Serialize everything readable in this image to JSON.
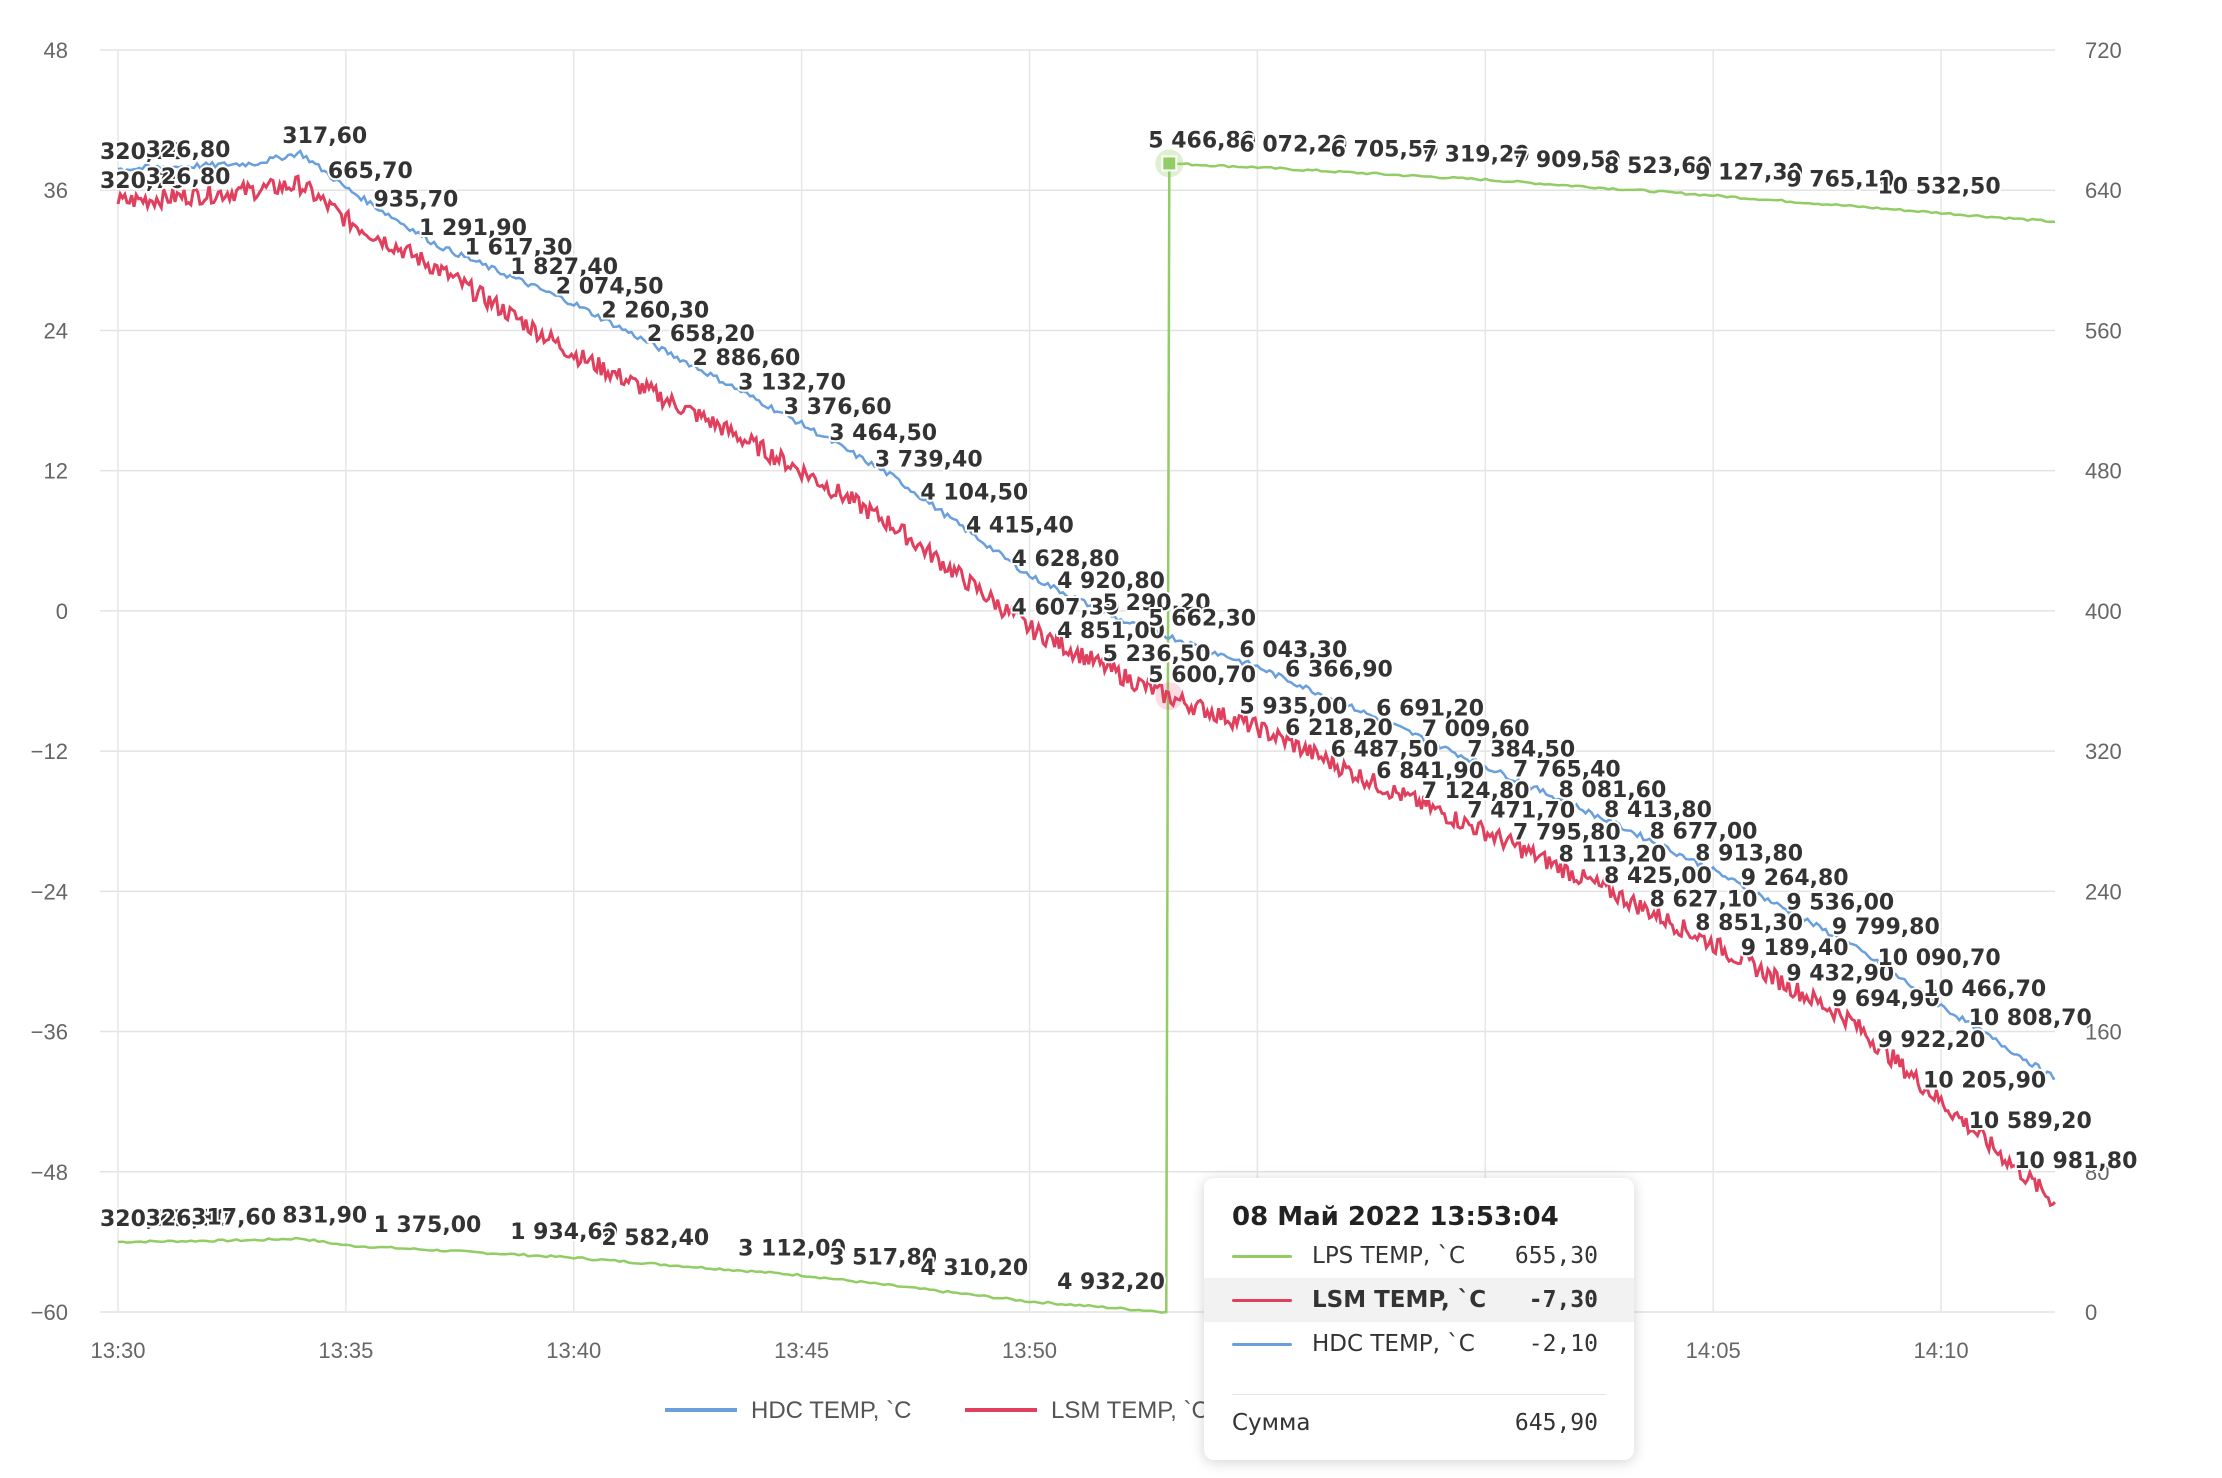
{
  "chart_data": {
    "type": "line",
    "x_ticks": [
      "13:30",
      "13:35",
      "13:40",
      "13:45",
      "13:50",
      "13:55",
      "14:00",
      "14:05",
      "14:10"
    ],
    "x_range": [
      "13:30",
      "14:12:30"
    ],
    "y_left": {
      "ticks": [
        48,
        36,
        24,
        12,
        0,
        -12,
        -24,
        -36,
        -48,
        -60
      ],
      "range": [
        -60,
        48
      ]
    },
    "y_right": {
      "ticks": [
        720,
        640,
        560,
        480,
        400,
        320,
        240,
        160,
        80,
        0
      ],
      "range": [
        0,
        720
      ]
    },
    "grid": true,
    "legend_position": "bottom",
    "series": [
      {
        "name": "HDC TEMP, `C",
        "color": "#6a9fde",
        "axis": "left",
        "points": [
          [
            "13:30",
            37.8
          ],
          [
            "13:33",
            38.3
          ],
          [
            "13:34",
            39.2
          ],
          [
            "13:35",
            36.2
          ],
          [
            "13:37",
            31.3
          ],
          [
            "13:40",
            26.3
          ],
          [
            "13:43",
            20.2
          ],
          [
            "13:45",
            16.0
          ],
          [
            "13:47",
            11.5
          ],
          [
            "13:50",
            3.0
          ],
          [
            "13:52",
            -0.8
          ],
          [
            "13:53",
            -2.1
          ],
          [
            "13:55",
            -4.8
          ],
          [
            "13:58",
            -9.8
          ],
          [
            "14:00",
            -13.3
          ],
          [
            "14:03",
            -18.5
          ],
          [
            "14:05",
            -22.2
          ],
          [
            "14:08",
            -28.5
          ],
          [
            "14:10",
            -33.8
          ],
          [
            "14:12:30",
            -40.0
          ]
        ],
        "labels": [
          [
            "13:30",
            "320,70"
          ],
          [
            "13:31",
            "326,80"
          ],
          [
            "13:34",
            "317,60"
          ],
          [
            "13:35",
            "665,70"
          ],
          [
            "13:36",
            "935,70"
          ],
          [
            "13:37",
            "1 291,90"
          ],
          [
            "13:38",
            "1 617,30"
          ],
          [
            "13:39",
            "1 827,40"
          ],
          [
            "13:40",
            "2 074,50"
          ],
          [
            "13:41",
            "2 260,30"
          ],
          [
            "13:42",
            "2 658,20"
          ],
          [
            "13:43",
            "2 886,60"
          ],
          [
            "13:44",
            "3 132,70"
          ],
          [
            "13:45",
            "3 376,60"
          ],
          [
            "13:46",
            "3 464,50"
          ],
          [
            "13:47",
            "3 739,40"
          ],
          [
            "13:48",
            "4 104,50"
          ],
          [
            "13:49",
            "4 415,40"
          ],
          [
            "13:50",
            "4 628,80"
          ],
          [
            "13:51",
            "4 920,80"
          ],
          [
            "13:52",
            "5 290,20"
          ],
          [
            "13:53",
            "5 662,30"
          ],
          [
            "13:55",
            "6 043,30"
          ],
          [
            "13:56",
            "6 366,90"
          ],
          [
            "13:58",
            "6 691,20"
          ],
          [
            "13:59",
            "7 009,60"
          ],
          [
            "14:00",
            "7 384,50"
          ],
          [
            "14:01",
            "7 765,40"
          ],
          [
            "14:02",
            "8 081,60"
          ],
          [
            "14:03",
            "8 413,80"
          ],
          [
            "14:04",
            "8 677,00"
          ],
          [
            "14:05",
            "8 913,80"
          ],
          [
            "14:06",
            "9 264,80"
          ],
          [
            "14:07",
            "9 536,00"
          ],
          [
            "14:08",
            "9 799,80"
          ],
          [
            "14:09",
            "10 090,70"
          ],
          [
            "14:10",
            "10 466,70"
          ],
          [
            "14:11",
            "10 808,70"
          ]
        ]
      },
      {
        "name": "LSM TEMP, `C",
        "color": "#e0405d",
        "axis": "left",
        "points": [
          [
            "13:30",
            35.0
          ],
          [
            "13:33",
            36.0
          ],
          [
            "13:34",
            36.5
          ],
          [
            "13:35",
            33.5
          ],
          [
            "13:37",
            29.3
          ],
          [
            "13:40",
            22.0
          ],
          [
            "13:43",
            16.2
          ],
          [
            "13:45",
            12.0
          ],
          [
            "13:47",
            7.3
          ],
          [
            "13:50",
            -1.5
          ],
          [
            "13:52",
            -5.5
          ],
          [
            "13:53",
            -7.3
          ],
          [
            "13:55",
            -10.0
          ],
          [
            "13:58",
            -15.5
          ],
          [
            "14:00",
            -18.9
          ],
          [
            "14:03",
            -24.5
          ],
          [
            "14:05",
            -28.5
          ],
          [
            "14:08",
            -35.0
          ],
          [
            "14:10",
            -42.0
          ],
          [
            "14:12:30",
            -50.6
          ]
        ],
        "labels": [
          [
            "13:30",
            "320,70"
          ],
          [
            "13:31",
            "326,80"
          ],
          [
            "13:50",
            "4 607,30"
          ],
          [
            "13:51",
            "4 851,00"
          ],
          [
            "13:52",
            "5 236,50"
          ],
          [
            "13:53",
            "5 600,70"
          ],
          [
            "13:55",
            "5 935,00"
          ],
          [
            "13:56",
            "6 218,20"
          ],
          [
            "13:57",
            "6 487,50"
          ],
          [
            "13:58",
            "6 841,90"
          ],
          [
            "13:59",
            "7 124,80"
          ],
          [
            "14:00",
            "7 471,70"
          ],
          [
            "14:01",
            "7 795,80"
          ],
          [
            "14:02",
            "8 113,20"
          ],
          [
            "14:03",
            "8 425,00"
          ],
          [
            "14:04",
            "8 627,10"
          ],
          [
            "14:05",
            "8 851,30"
          ],
          [
            "14:06",
            "9 189,40"
          ],
          [
            "14:07",
            "9 432,90"
          ],
          [
            "14:08",
            "9 694,90"
          ],
          [
            "14:09",
            "9 922,20"
          ],
          [
            "14:10",
            "10 205,90"
          ],
          [
            "14:11",
            "10 589,20"
          ],
          [
            "14:12",
            "10 981,80"
          ]
        ]
      },
      {
        "name": "LPS TEMP, `C",
        "color": "#92cc64",
        "axis": "right",
        "points": [
          [
            "13:30",
            40
          ],
          [
            "13:33",
            41
          ],
          [
            "13:34",
            42
          ],
          [
            "13:35",
            38
          ],
          [
            "13:40",
            31
          ],
          [
            "13:45",
            21
          ],
          [
            "13:50",
            6
          ],
          [
            "13:53",
            0
          ],
          [
            "13:53:04",
            655.3
          ],
          [
            "13:55",
            653
          ],
          [
            "14:00",
            646
          ],
          [
            "14:05",
            637
          ],
          [
            "14:10",
            627
          ],
          [
            "14:12:30",
            622
          ]
        ],
        "labels": [
          [
            "13:30",
            "320,70"
          ],
          [
            "13:31",
            "326,80"
          ],
          [
            "13:32",
            "317,60"
          ],
          [
            "13:34",
            "831,90"
          ],
          [
            "13:36",
            "1 375,00"
          ],
          [
            "13:39",
            "1 934,60"
          ],
          [
            "13:41",
            "2 582,40"
          ],
          [
            "13:44",
            "3 112,00"
          ],
          [
            "13:46",
            "3 517,80"
          ],
          [
            "13:48",
            "4 310,20"
          ],
          [
            "13:51",
            "4 932,20"
          ],
          [
            "13:53",
            "5 466,80"
          ],
          [
            "13:55",
            "6 072,20"
          ],
          [
            "13:57",
            "6 705,50"
          ],
          [
            "13:59",
            "7 319,20"
          ],
          [
            "14:01",
            "7 909,50"
          ],
          [
            "14:03",
            "8 523,60"
          ],
          [
            "14:05",
            "9 127,30"
          ],
          [
            "14:07",
            "9 765,10"
          ],
          [
            "14:09",
            "10 532,50"
          ]
        ]
      }
    ],
    "crosshair_time": "13:53:04",
    "tooltip": {
      "title": "08 Май 2022 13:53:04",
      "rows": [
        {
          "name": "LPS TEMP, `C",
          "value": "655,30",
          "color": "#92cc64"
        },
        {
          "name": "LSM TEMP, `C",
          "value": "-7,30",
          "color": "#e0405d",
          "highlighted": true
        },
        {
          "name": "HDC TEMP, `C",
          "value": "-2,10",
          "color": "#6a9fde"
        }
      ],
      "sum_label": "Сумма",
      "sum_value": "645,90"
    }
  }
}
